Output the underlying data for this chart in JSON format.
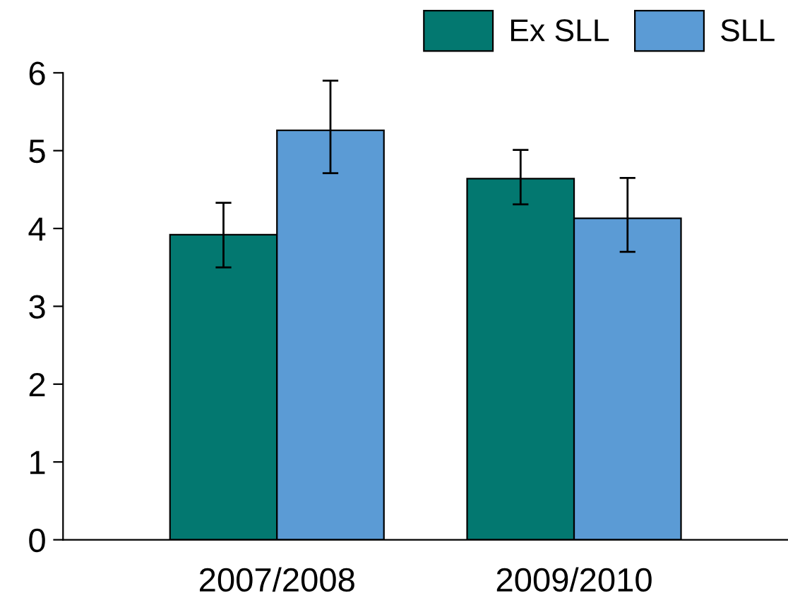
{
  "chart_data": {
    "type": "bar",
    "categories": [
      "2007/2008",
      "2009/2010"
    ],
    "series": [
      {
        "name": "Ex SLL",
        "color": "#037870",
        "values": [
          3.92,
          4.64
        ],
        "errors": [
          [
            3.5,
            4.33
          ],
          [
            4.31,
            5.01
          ]
        ]
      },
      {
        "name": "SLL",
        "color": "#5b9bd5",
        "values": [
          5.26,
          4.13
        ],
        "errors": [
          [
            4.71,
            5.9
          ],
          [
            3.7,
            4.65
          ]
        ]
      }
    ],
    "ylim": [
      0,
      6
    ],
    "yticks": [
      0,
      1,
      2,
      3,
      4,
      5,
      6
    ],
    "grid": false,
    "legend": "top right"
  }
}
